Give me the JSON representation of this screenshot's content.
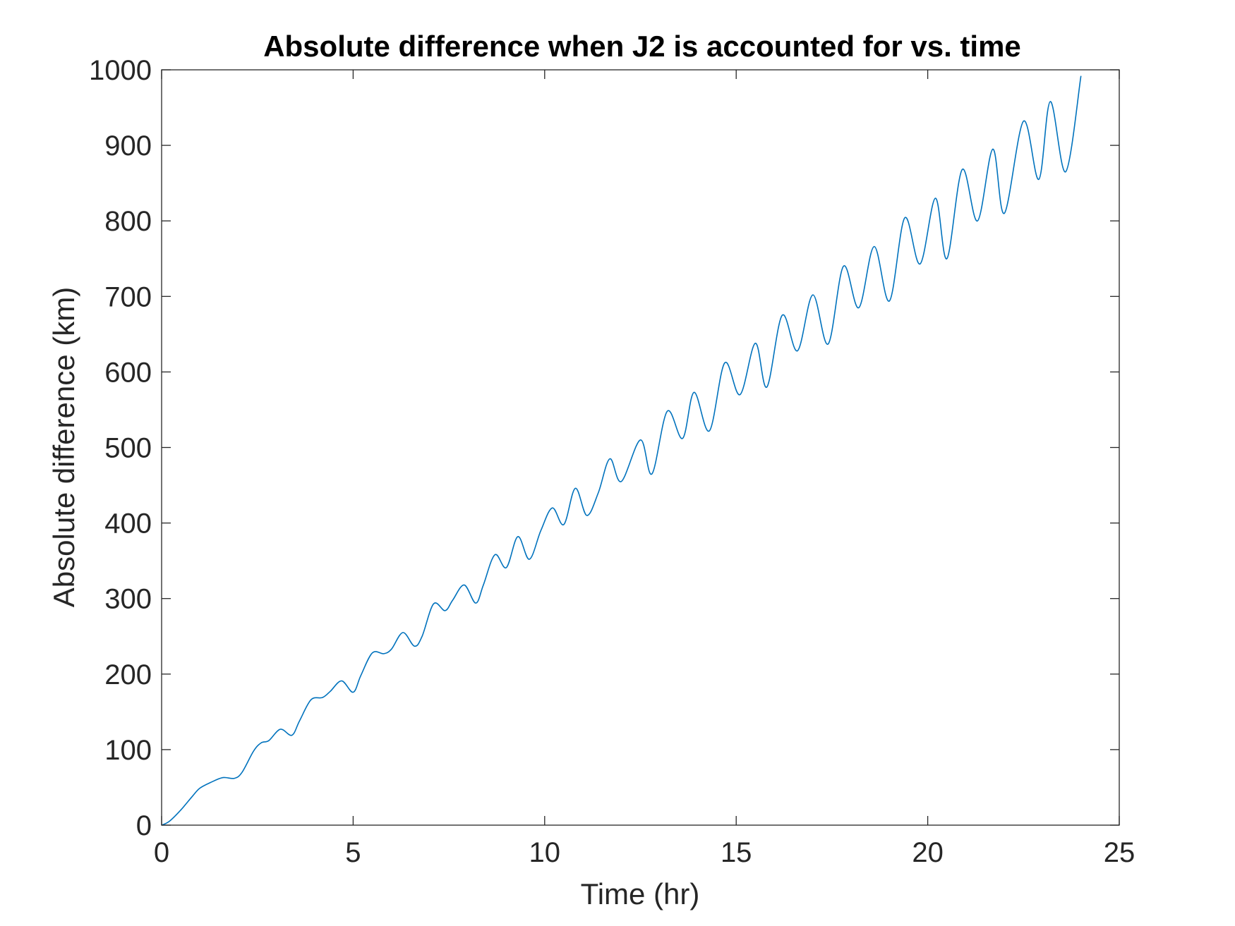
{
  "chart_data": {
    "type": "line",
    "title": "Absolute difference when J2 is accounted for vs. time",
    "xlabel": "Time (hr)",
    "ylabel": "Absolute difference (km)",
    "xlim": [
      0,
      25
    ],
    "ylim": [
      0,
      1000
    ],
    "xticks": [
      "0",
      "5",
      "10",
      "15",
      "20",
      "25"
    ],
    "yticks": [
      "0",
      "100",
      "200",
      "300",
      "400",
      "500",
      "600",
      "700",
      "800",
      "900",
      "1000"
    ],
    "grid": false,
    "line_color": "#0072BD",
    "series": [
      {
        "x": [
          0,
          0.2,
          0.5,
          0.8,
          1.0,
          1.3,
          1.6,
          1.9,
          2.1,
          2.4,
          2.6,
          2.8,
          3.1,
          3.4,
          3.6,
          3.9,
          4.2,
          4.4,
          4.7,
          5.0,
          5.2,
          5.5,
          5.8,
          6.0,
          6.3,
          6.6,
          6.8,
          7.1,
          7.4,
          7.6,
          7.9,
          8.2,
          8.4,
          8.7,
          9.0,
          9.3,
          9.6,
          9.9,
          10.2,
          10.5,
          10.8,
          11.1,
          11.4,
          11.7,
          12.0,
          12.5,
          12.8,
          13.2,
          13.6,
          13.9,
          14.3,
          14.7,
          15.1,
          15.5,
          15.8,
          16.2,
          16.6,
          17.0,
          17.4,
          17.8,
          18.2,
          18.6,
          19.0,
          19.4,
          19.8,
          20.2,
          20.5,
          20.9,
          21.3,
          21.7,
          22.0,
          22.5,
          22.9,
          23.2,
          23.6,
          24.0
        ],
        "y": [
          0,
          5,
          20,
          38,
          49,
          57,
          63,
          62,
          70,
          98,
          109,
          112,
          127,
          119,
          138,
          166,
          169,
          177,
          191,
          176,
          198,
          228,
          227,
          233,
          255,
          237,
          250,
          293,
          284,
          298,
          318,
          294,
          318,
          358,
          341,
          382,
          352,
          390,
          420,
          398,
          446,
          410,
          440,
          485,
          455,
          510,
          465,
          548,
          512,
          573,
          522,
          612,
          570,
          638,
          580,
          675,
          628,
          702,
          637,
          740,
          685,
          766,
          694,
          804,
          743,
          830,
          750,
          868,
          800,
          895,
          810,
          932,
          855,
          958,
          865,
          992
        ]
      }
    ]
  }
}
